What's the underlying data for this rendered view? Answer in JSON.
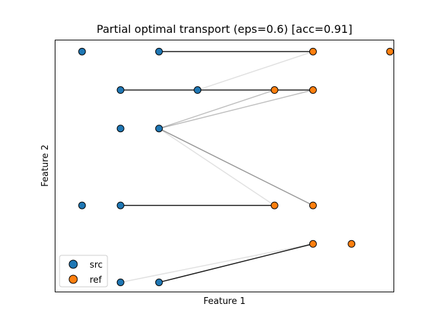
{
  "chart_data": {
    "type": "scatter",
    "title": "Partial optimal transport (eps=0.6) [acc=0.91]",
    "xlabel": "Feature 1",
    "ylabel": "Feature 2",
    "xlim": [
      0.3,
      9.1
    ],
    "ylim": [
      -0.25,
      6.3
    ],
    "grid": false,
    "legend_position": "lower-left",
    "series": [
      {
        "name": "src",
        "color": "#1f77b4",
        "points": [
          [
            1,
            6
          ],
          [
            3,
            6
          ],
          [
            2,
            5
          ],
          [
            4,
            5
          ],
          [
            2,
            4
          ],
          [
            3,
            4
          ],
          [
            1,
            2
          ],
          [
            2,
            2
          ],
          [
            2,
            0
          ],
          [
            3,
            0
          ]
        ]
      },
      {
        "name": "ref",
        "color": "#ff7f0e",
        "points": [
          [
            7,
            6
          ],
          [
            9,
            6
          ],
          [
            6,
            5
          ],
          [
            7,
            5
          ],
          [
            6,
            2
          ],
          [
            7,
            2
          ],
          [
            7,
            1
          ],
          [
            8,
            1
          ]
        ]
      }
    ],
    "transport_lines": [
      {
        "from": [
          3,
          6
        ],
        "to": [
          7,
          6
        ],
        "weight": 1.0
      },
      {
        "from": [
          2,
          5
        ],
        "to": [
          7,
          5
        ],
        "weight": 1.0
      },
      {
        "from": [
          4,
          5
        ],
        "to": [
          7,
          6
        ],
        "weight": 0.12
      },
      {
        "from": [
          3,
          4
        ],
        "to": [
          6,
          5
        ],
        "weight": 0.25
      },
      {
        "from": [
          3,
          4
        ],
        "to": [
          7,
          5
        ],
        "weight": 0.25
      },
      {
        "from": [
          3,
          4
        ],
        "to": [
          6,
          2
        ],
        "weight": 0.12
      },
      {
        "from": [
          3,
          4
        ],
        "to": [
          7,
          2
        ],
        "weight": 0.4
      },
      {
        "from": [
          2,
          2
        ],
        "to": [
          6,
          2
        ],
        "weight": 1.0
      },
      {
        "from": [
          3,
          0
        ],
        "to": [
          7,
          1
        ],
        "weight": 1.0
      },
      {
        "from": [
          2,
          0
        ],
        "to": [
          7,
          1
        ],
        "weight": 0.12
      }
    ]
  }
}
